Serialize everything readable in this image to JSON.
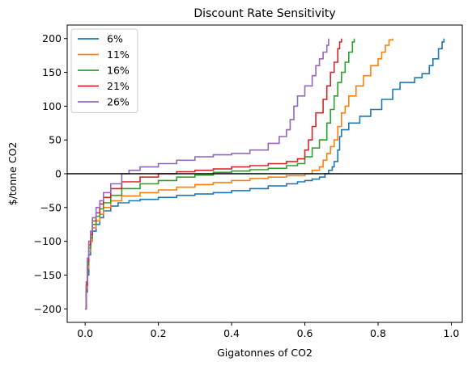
{
  "chart_data": {
    "type": "line",
    "title": "Discount Rate Sensitivity",
    "xlabel": "Gigatonnes of CO2",
    "ylabel": "$/tonne CO2",
    "xlim": [
      -0.049,
      1.03
    ],
    "ylim": [
      -220,
      220
    ],
    "xticks": [
      0.0,
      0.2,
      0.4,
      0.6,
      0.8,
      1.0
    ],
    "xtick_labels": [
      "0.0",
      "0.2",
      "0.4",
      "0.6",
      "0.8",
      "1.0"
    ],
    "yticks": [
      -200,
      -150,
      -100,
      -50,
      0,
      50,
      100,
      150,
      200
    ],
    "ytick_labels": [
      "−200",
      "−150",
      "−100",
      "−50",
      "0",
      "50",
      "100",
      "150",
      "200"
    ],
    "grid": false,
    "legend_position": "upper-left",
    "reference_line": {
      "y": 0,
      "color": "#000000"
    },
    "series": [
      {
        "name": "6%",
        "color": "#1f77b4",
        "points": [
          [
            0.0,
            -200
          ],
          [
            0.003,
            -175
          ],
          [
            0.006,
            -150
          ],
          [
            0.01,
            -120
          ],
          [
            0.015,
            -100
          ],
          [
            0.02,
            -85
          ],
          [
            0.03,
            -75
          ],
          [
            0.04,
            -65
          ],
          [
            0.05,
            -55
          ],
          [
            0.07,
            -48
          ],
          [
            0.09,
            -43
          ],
          [
            0.12,
            -40
          ],
          [
            0.15,
            -38
          ],
          [
            0.2,
            -35
          ],
          [
            0.25,
            -32
          ],
          [
            0.3,
            -30
          ],
          [
            0.35,
            -28
          ],
          [
            0.4,
            -25
          ],
          [
            0.45,
            -22
          ],
          [
            0.5,
            -18
          ],
          [
            0.55,
            -15
          ],
          [
            0.58,
            -12
          ],
          [
            0.6,
            -10
          ],
          [
            0.62,
            -8
          ],
          [
            0.64,
            -5
          ],
          [
            0.655,
            0
          ],
          [
            0.665,
            5
          ],
          [
            0.675,
            10
          ],
          [
            0.68,
            18
          ],
          [
            0.69,
            35
          ],
          [
            0.695,
            55
          ],
          [
            0.7,
            65
          ],
          [
            0.72,
            75
          ],
          [
            0.75,
            85
          ],
          [
            0.78,
            95
          ],
          [
            0.81,
            110
          ],
          [
            0.84,
            125
          ],
          [
            0.86,
            135
          ],
          [
            0.9,
            142
          ],
          [
            0.92,
            148
          ],
          [
            0.94,
            160
          ],
          [
            0.95,
            170
          ],
          [
            0.965,
            185
          ],
          [
            0.975,
            195
          ],
          [
            0.98,
            200
          ]
        ]
      },
      {
        "name": "11%",
        "color": "#ff7f0e",
        "points": [
          [
            0.0,
            -200
          ],
          [
            0.003,
            -170
          ],
          [
            0.006,
            -140
          ],
          [
            0.01,
            -115
          ],
          [
            0.015,
            -100
          ],
          [
            0.02,
            -80
          ],
          [
            0.03,
            -70
          ],
          [
            0.04,
            -60
          ],
          [
            0.05,
            -50
          ],
          [
            0.07,
            -40
          ],
          [
            0.1,
            -33
          ],
          [
            0.15,
            -28
          ],
          [
            0.2,
            -24
          ],
          [
            0.25,
            -20
          ],
          [
            0.3,
            -16
          ],
          [
            0.35,
            -13
          ],
          [
            0.4,
            -10
          ],
          [
            0.45,
            -7
          ],
          [
            0.5,
            -5
          ],
          [
            0.55,
            -3
          ],
          [
            0.6,
            0
          ],
          [
            0.62,
            5
          ],
          [
            0.64,
            10
          ],
          [
            0.65,
            20
          ],
          [
            0.66,
            30
          ],
          [
            0.67,
            40
          ],
          [
            0.68,
            50
          ],
          [
            0.69,
            70
          ],
          [
            0.7,
            90
          ],
          [
            0.71,
            100
          ],
          [
            0.72,
            115
          ],
          [
            0.74,
            130
          ],
          [
            0.76,
            145
          ],
          [
            0.78,
            160
          ],
          [
            0.8,
            170
          ],
          [
            0.81,
            180
          ],
          [
            0.82,
            190
          ],
          [
            0.83,
            198
          ],
          [
            0.84,
            200
          ]
        ]
      },
      {
        "name": "16%",
        "color": "#2ca02c",
        "points": [
          [
            0.0,
            -200
          ],
          [
            0.003,
            -165
          ],
          [
            0.006,
            -135
          ],
          [
            0.01,
            -110
          ],
          [
            0.015,
            -95
          ],
          [
            0.02,
            -75
          ],
          [
            0.03,
            -63
          ],
          [
            0.04,
            -52
          ],
          [
            0.05,
            -43
          ],
          [
            0.07,
            -32
          ],
          [
            0.1,
            -22
          ],
          [
            0.15,
            -15
          ],
          [
            0.2,
            -10
          ],
          [
            0.25,
            -5
          ],
          [
            0.3,
            -2
          ],
          [
            0.35,
            2
          ],
          [
            0.4,
            4
          ],
          [
            0.45,
            6
          ],
          [
            0.5,
            8
          ],
          [
            0.55,
            12
          ],
          [
            0.58,
            15
          ],
          [
            0.6,
            25
          ],
          [
            0.62,
            38
          ],
          [
            0.64,
            50
          ],
          [
            0.66,
            75
          ],
          [
            0.67,
            95
          ],
          [
            0.68,
            115
          ],
          [
            0.69,
            135
          ],
          [
            0.7,
            150
          ],
          [
            0.71,
            165
          ],
          [
            0.72,
            180
          ],
          [
            0.73,
            195
          ],
          [
            0.735,
            200
          ]
        ]
      },
      {
        "name": "21%",
        "color": "#d62728",
        "points": [
          [
            0.0,
            -200
          ],
          [
            0.003,
            -165
          ],
          [
            0.006,
            -130
          ],
          [
            0.01,
            -105
          ],
          [
            0.015,
            -90
          ],
          [
            0.02,
            -70
          ],
          [
            0.03,
            -58
          ],
          [
            0.04,
            -45
          ],
          [
            0.05,
            -35
          ],
          [
            0.07,
            -22
          ],
          [
            0.1,
            -12
          ],
          [
            0.15,
            -5
          ],
          [
            0.2,
            0
          ],
          [
            0.25,
            3
          ],
          [
            0.3,
            5
          ],
          [
            0.35,
            7
          ],
          [
            0.4,
            10
          ],
          [
            0.45,
            12
          ],
          [
            0.5,
            15
          ],
          [
            0.55,
            18
          ],
          [
            0.58,
            22
          ],
          [
            0.6,
            35
          ],
          [
            0.61,
            50
          ],
          [
            0.62,
            70
          ],
          [
            0.63,
            90
          ],
          [
            0.65,
            110
          ],
          [
            0.66,
            130
          ],
          [
            0.67,
            150
          ],
          [
            0.68,
            165
          ],
          [
            0.69,
            185
          ],
          [
            0.695,
            195
          ],
          [
            0.7,
            200
          ]
        ]
      },
      {
        "name": "26%",
        "color": "#9467bd",
        "points": [
          [
            0.0,
            -200
          ],
          [
            0.003,
            -160
          ],
          [
            0.006,
            -125
          ],
          [
            0.01,
            -100
          ],
          [
            0.015,
            -85
          ],
          [
            0.02,
            -65
          ],
          [
            0.03,
            -50
          ],
          [
            0.04,
            -40
          ],
          [
            0.05,
            -28
          ],
          [
            0.07,
            -15
          ],
          [
            0.1,
            0
          ],
          [
            0.12,
            5
          ],
          [
            0.15,
            10
          ],
          [
            0.2,
            15
          ],
          [
            0.25,
            20
          ],
          [
            0.3,
            25
          ],
          [
            0.35,
            28
          ],
          [
            0.4,
            30
          ],
          [
            0.45,
            35
          ],
          [
            0.5,
            45
          ],
          [
            0.53,
            55
          ],
          [
            0.55,
            65
          ],
          [
            0.56,
            80
          ],
          [
            0.57,
            100
          ],
          [
            0.58,
            115
          ],
          [
            0.6,
            130
          ],
          [
            0.62,
            145
          ],
          [
            0.63,
            160
          ],
          [
            0.64,
            170
          ],
          [
            0.65,
            180
          ],
          [
            0.66,
            190
          ],
          [
            0.665,
            200
          ]
        ]
      }
    ]
  }
}
